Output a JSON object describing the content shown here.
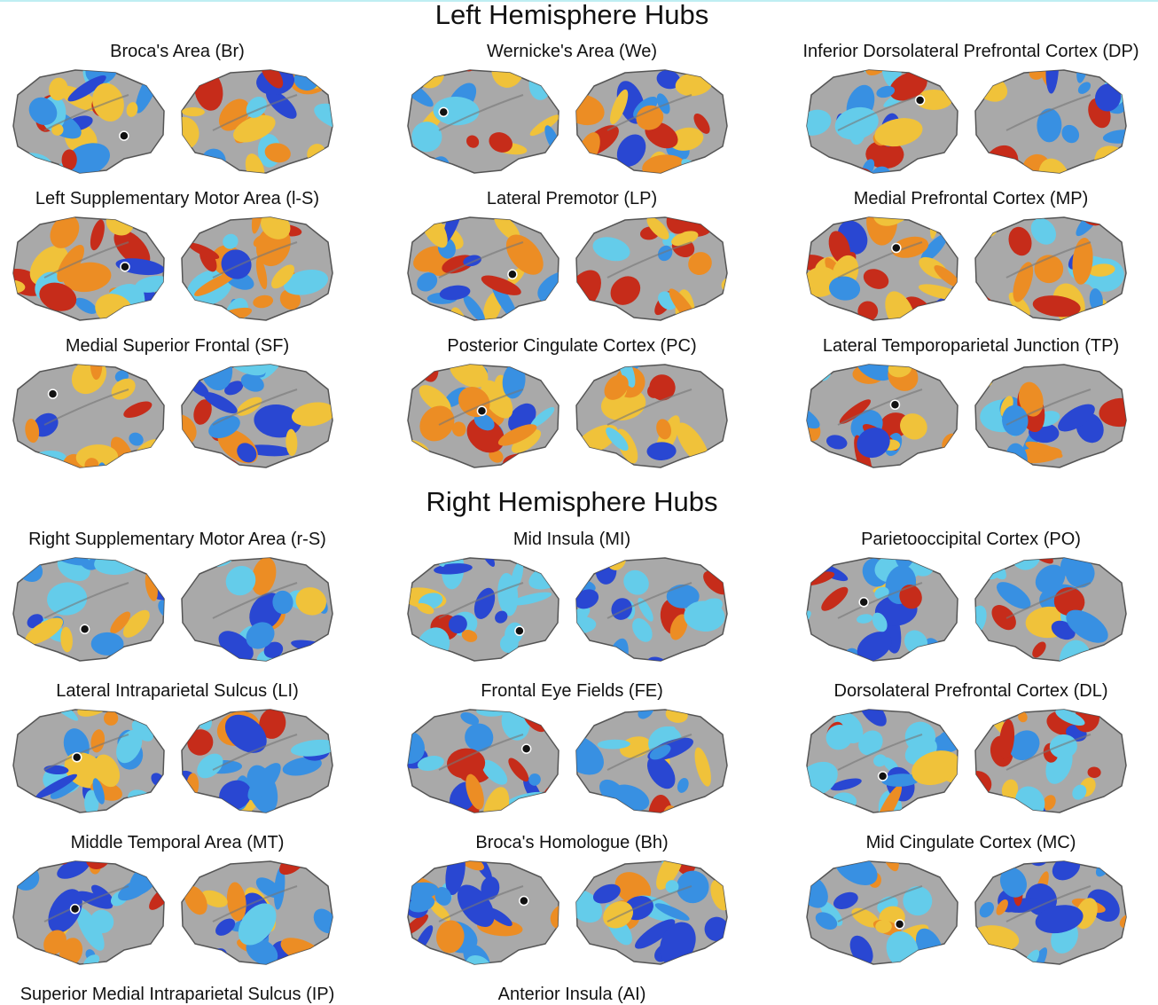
{
  "sections": [
    {
      "title": "Left Hemisphere Hubs",
      "panels": [
        "Broca's Area (Br)",
        "Wernicke's Area (We)",
        "Inferior Dorsolateral Prefrontal Cortex (DP)",
        "Left Supplementary Motor Area (l-S)",
        "Lateral Premotor (LP)",
        "Medial Prefrontal Cortex (MP)",
        "Medial Superior Frontal (SF)",
        "Posterior Cingulate Cortex (PC)",
        "Lateral Temporoparietal Junction (TP)"
      ]
    },
    {
      "title": "Right Hemisphere Hubs",
      "panels": [
        "Right Supplementary Motor Area (r-S)",
        "Mid Insula (MI)",
        "Parietooccipital Cortex (PO)",
        "Lateral Intraparietal Sulcus (LI)",
        "Frontal Eye Fields (FE)",
        "Dorsolateral Prefrontal Cortex (DL)",
        "Middle Temporal Area (MT)",
        "Broca's Homologue (Bh)",
        "Mid Cingulate Cortex (MC)",
        "Superior Medial Intraparietal Sulcus (IP)",
        "Anterior Insula (AI)"
      ]
    }
  ]
}
